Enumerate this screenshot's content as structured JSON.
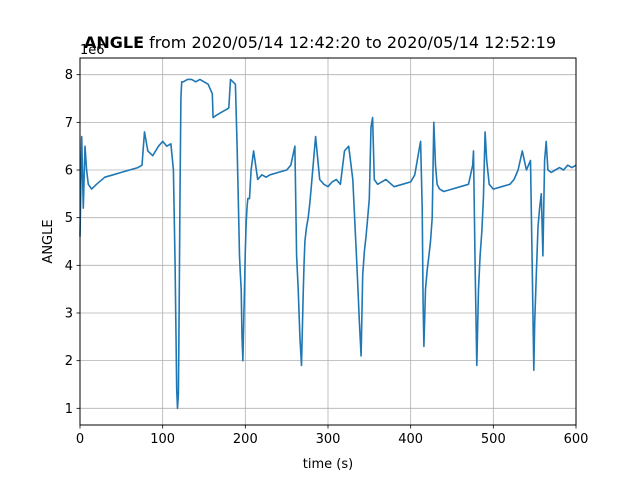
{
  "chart_data": {
    "type": "line",
    "title_bold": "ANGLE",
    "title_rest": " from 2020/05/14 12:42:20 to 2020/05/14 12:52:19",
    "xlabel": "time (s)",
    "ylabel": "ANGLE",
    "offset_label": "1e6",
    "xlim": [
      0,
      600
    ],
    "ylim": [
      0.65,
      8.35
    ],
    "xticks": [
      0,
      100,
      200,
      300,
      400,
      500,
      600
    ],
    "yticks": [
      1,
      2,
      3,
      4,
      5,
      6,
      7,
      8
    ],
    "grid": true,
    "line_color": "#1f77b4",
    "series": [
      {
        "x": [
          0,
          2,
          4,
          6,
          8,
          10,
          14,
          20,
          30,
          40,
          50,
          60,
          70,
          75,
          78,
          82,
          88,
          95,
          100,
          105,
          110,
          113,
          115,
          117,
          118,
          119,
          120,
          121,
          122,
          123,
          125,
          130,
          135,
          140,
          145,
          150,
          155,
          160,
          161,
          165,
          170,
          175,
          180,
          182,
          185,
          188,
          190,
          192,
          193,
          194,
          195,
          196,
          197,
          198,
          199,
          200,
          201,
          202,
          203,
          205,
          207,
          210,
          215,
          220,
          225,
          230,
          240,
          250,
          255,
          260,
          262,
          264,
          266,
          268,
          270,
          271,
          272,
          274,
          276,
          278,
          280,
          285,
          290,
          295,
          300,
          305,
          310,
          315,
          320,
          325,
          330,
          335,
          338,
          340,
          342,
          344,
          346,
          348,
          350,
          352,
          354,
          356,
          360,
          365,
          370,
          380,
          390,
          400,
          405,
          410,
          412,
          414,
          415,
          416,
          418,
          420,
          422,
          424,
          426,
          428,
          430,
          432,
          435,
          440,
          450,
          460,
          470,
          475,
          476,
          478,
          480,
          482,
          484,
          486,
          488,
          490,
          492,
          495,
          500,
          510,
          520,
          525,
          530,
          535,
          540,
          545,
          547,
          549,
          550,
          552,
          554,
          556,
          558,
          560,
          562,
          564,
          566,
          570,
          575,
          580,
          585,
          590,
          595,
          600
        ],
        "y": [
          4.6,
          6.7,
          5.2,
          6.5,
          6.0,
          5.7,
          5.6,
          5.7,
          5.85,
          5.9,
          5.95,
          6.0,
          6.05,
          6.1,
          6.8,
          6.4,
          6.3,
          6.5,
          6.6,
          6.5,
          6.55,
          6.0,
          4.0,
          1.4,
          1.0,
          1.3,
          3.2,
          5.5,
          7.5,
          7.85,
          7.85,
          7.9,
          7.9,
          7.85,
          7.9,
          7.85,
          7.8,
          7.6,
          7.1,
          7.15,
          7.2,
          7.25,
          7.3,
          7.9,
          7.85,
          7.8,
          6.5,
          5.0,
          4.2,
          3.8,
          3.5,
          2.5,
          2.0,
          2.8,
          3.5,
          4.3,
          4.9,
          5.2,
          5.4,
          5.4,
          6.0,
          6.4,
          5.8,
          5.9,
          5.85,
          5.9,
          5.95,
          6.0,
          6.1,
          6.5,
          4.2,
          3.5,
          2.5,
          1.9,
          3.4,
          4.0,
          4.5,
          4.8,
          5.0,
          5.3,
          5.7,
          6.7,
          5.8,
          5.7,
          5.65,
          5.75,
          5.8,
          5.7,
          6.4,
          6.5,
          5.8,
          4.0,
          2.8,
          2.1,
          3.8,
          4.3,
          4.6,
          5.0,
          5.4,
          6.9,
          7.1,
          5.8,
          5.7,
          5.75,
          5.8,
          5.65,
          5.7,
          5.75,
          5.9,
          6.4,
          6.6,
          5.2,
          3.2,
          2.3,
          3.5,
          3.9,
          4.2,
          4.5,
          5.0,
          7.0,
          6.1,
          5.7,
          5.6,
          5.55,
          5.6,
          5.65,
          5.7,
          6.1,
          6.4,
          4.0,
          1.9,
          3.5,
          4.2,
          4.7,
          5.4,
          6.8,
          6.2,
          5.7,
          5.6,
          5.65,
          5.7,
          5.8,
          6.0,
          6.4,
          6.0,
          6.2,
          4.0,
          1.8,
          2.8,
          3.8,
          4.8,
          5.2,
          5.5,
          4.2,
          6.2,
          6.6,
          6.0,
          5.95,
          6.0,
          6.05,
          6.0,
          6.1,
          6.05,
          6.1
        ]
      }
    ]
  }
}
